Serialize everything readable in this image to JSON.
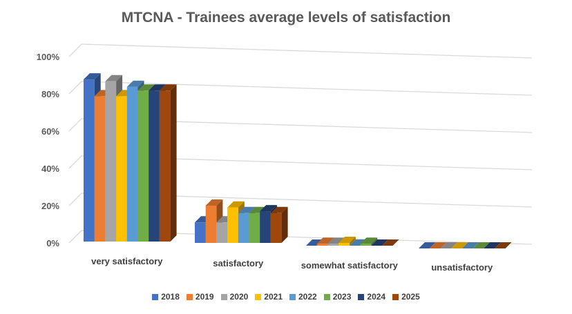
{
  "chart_data": {
    "type": "bar",
    "title": "MTCNA - Trainees average levels of satisfaction",
    "categories": [
      "very satisfactory",
      "satisfactory",
      "somewhat satisfactory",
      "unsatisfactory"
    ],
    "yticks": [
      "0%",
      "20%",
      "40%",
      "60%",
      "80%",
      "100%"
    ],
    "ylim": [
      0,
      100
    ],
    "grid": true,
    "legend": "bottom",
    "three_d": true,
    "series": [
      {
        "name": "2018",
        "color": "#4472C4",
        "values": [
          87,
          11,
          0,
          0
        ]
      },
      {
        "name": "2019",
        "color": "#ED7D31",
        "values": [
          78,
          20,
          1,
          0
        ]
      },
      {
        "name": "2020",
        "color": "#A5A5A5",
        "values": [
          86,
          11,
          1,
          0
        ]
      },
      {
        "name": "2021",
        "color": "#FFC000",
        "values": [
          78,
          19,
          1.5,
          0
        ]
      },
      {
        "name": "2022",
        "color": "#5B9BD5",
        "values": [
          83,
          16,
          0,
          0
        ]
      },
      {
        "name": "2023",
        "color": "#70AD47",
        "values": [
          81,
          16,
          1,
          0
        ]
      },
      {
        "name": "2024",
        "color": "#264478",
        "values": [
          81,
          17,
          0,
          0
        ]
      },
      {
        "name": "2025",
        "color": "#9E480E",
        "values": [
          81,
          16,
          0,
          0
        ]
      }
    ]
  }
}
